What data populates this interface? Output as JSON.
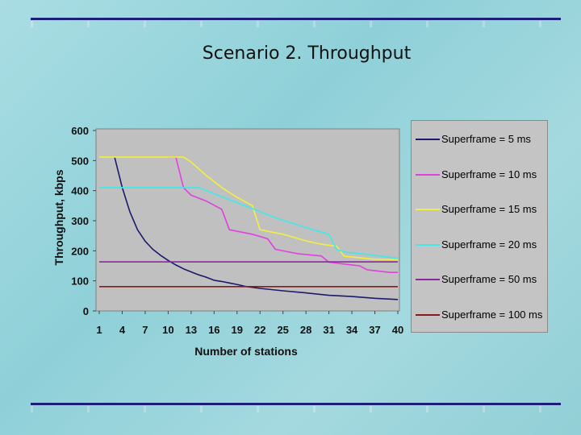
{
  "slide": {
    "title": "Scenario 2. Throughput"
  },
  "colors": {
    "background": "#9fd7de",
    "rule": "#1b1f78",
    "plot_area": "#c0c0c0"
  },
  "chart_data": {
    "type": "line",
    "title": "",
    "xlabel": "Number of stations",
    "ylabel": "Throughput, kbps",
    "xlim": [
      1,
      40
    ],
    "ylim": [
      0,
      600
    ],
    "xticks": [
      1,
      4,
      7,
      10,
      13,
      16,
      19,
      22,
      25,
      28,
      31,
      34,
      37,
      40
    ],
    "yticks": [
      0,
      100,
      200,
      300,
      400,
      500,
      600
    ],
    "grid": false,
    "legend_position": "right",
    "series": [
      {
        "name": "Superframe = 5 ms",
        "color": "#1a1a6e",
        "x": [
          3,
          4,
          5,
          6,
          7,
          8,
          9,
          10,
          11,
          12,
          13,
          14,
          15,
          16,
          17,
          18,
          19,
          20,
          22,
          25,
          28,
          31,
          34,
          37,
          40
        ],
        "y": [
          512,
          410,
          330,
          270,
          232,
          205,
          185,
          168,
          153,
          140,
          130,
          120,
          112,
          102,
          98,
          93,
          88,
          82,
          75,
          67,
          60,
          52,
          48,
          42,
          38
        ]
      },
      {
        "name": "Superframe = 10 ms",
        "color": "#e040e0",
        "x": [
          10,
          11,
          12,
          13,
          15,
          17,
          18,
          21,
          23,
          24,
          27,
          30,
          31,
          34,
          35,
          36,
          39,
          40
        ],
        "y": [
          512,
          512,
          410,
          385,
          365,
          338,
          270,
          255,
          240,
          205,
          190,
          183,
          162,
          153,
          150,
          137,
          128,
          128
        ]
      },
      {
        "name": "Superframe = 15 ms",
        "color": "#f0f040",
        "x": [
          1,
          12,
          13,
          15,
          17,
          19,
          21,
          22,
          25,
          28,
          30,
          32,
          33,
          37,
          40
        ],
        "y": [
          512,
          512,
          495,
          450,
          410,
          378,
          350,
          270,
          255,
          233,
          222,
          215,
          182,
          172,
          170
        ]
      },
      {
        "name": "Superframe = 20 ms",
        "color": "#40e8e8",
        "x": [
          1,
          14,
          16,
          20,
          24,
          28,
          31,
          32,
          33,
          36,
          40
        ],
        "y": [
          410,
          410,
          390,
          350,
          310,
          277,
          255,
          205,
          196,
          188,
          175
        ]
      },
      {
        "name": "Superframe = 50 ms",
        "color": "#8a2a9a",
        "x": [
          1,
          40
        ],
        "y": [
          163,
          163
        ]
      },
      {
        "name": "Superframe = 100 ms",
        "color": "#8a1a1a",
        "x": [
          1,
          40
        ],
        "y": [
          81,
          81
        ]
      }
    ]
  }
}
